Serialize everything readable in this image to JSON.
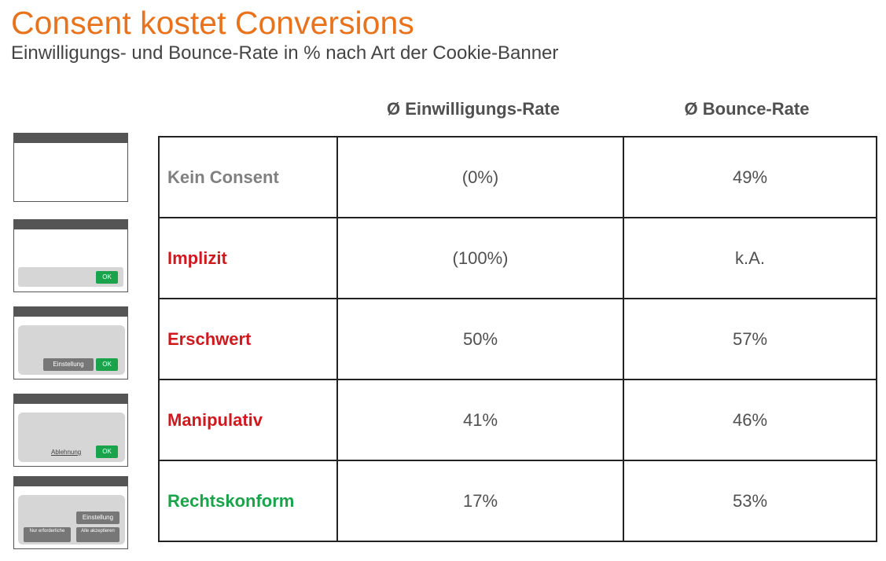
{
  "header": {
    "title": "Consent kostet Conversions",
    "subtitle": "Einwilligungs- und Bounce-Rate in % nach Art der Cookie-Banner"
  },
  "columns": {
    "consent_rate": "Ø Einwilligungs-Rate",
    "bounce_rate": "Ø Bounce-Rate"
  },
  "colors": {
    "title": "#e8731c",
    "neutral": "#808080",
    "bad": "#d0191f",
    "good": "#1aa34a"
  },
  "rows": [
    {
      "label": "Kein Consent",
      "consent": "(0%)",
      "bounce": "49%"
    },
    {
      "label": "Implizit",
      "consent": "(100%)",
      "bounce": "k.A."
    },
    {
      "label": "Erschwert",
      "consent": "50%",
      "bounce": "57%"
    },
    {
      "label": "Manipulativ",
      "consent": "41%",
      "bounce": "46%"
    },
    {
      "label": "Rechtskonform",
      "consent": "17%",
      "bounce": "53%"
    }
  ],
  "icons": {
    "ok": "OK",
    "einstellung": "Einstellung",
    "ablehnung": "Ablehnung",
    "nur_erforderliche": "Nur erforderliche",
    "alle_akzeptieren": "Alle akzeptieren"
  }
}
